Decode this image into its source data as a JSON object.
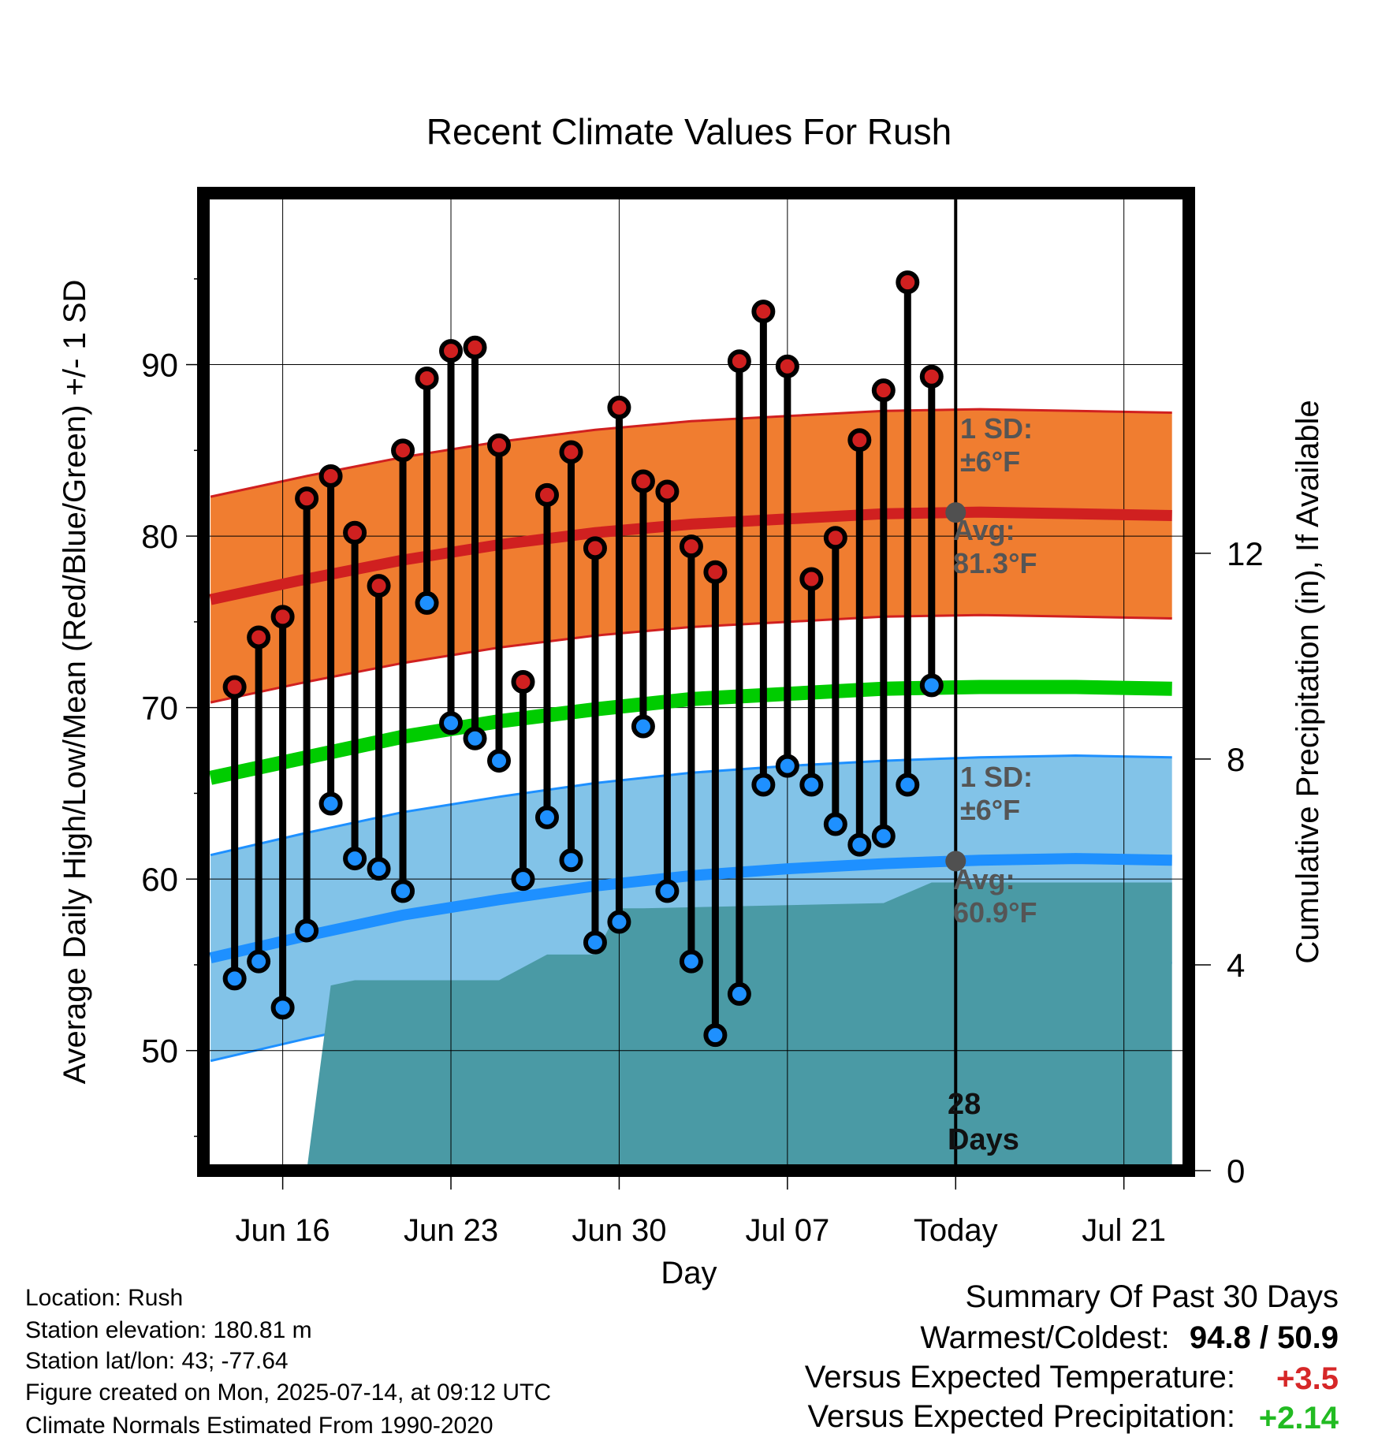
{
  "chart_data": {
    "type": "line",
    "title": "Recent Climate Values For Rush",
    "xlabel": "Day",
    "ylabel": "Average Daily High/Low/Mean (Red/Blue/Green) +/- 1 SD",
    "y2label": "Cumulative Precipitation (in), If Available",
    "ylim": [
      43,
      100
    ],
    "y_ticks": [
      50,
      60,
      70,
      80,
      90
    ],
    "y2lim": [
      0,
      19
    ],
    "y2_ticks": [
      0,
      4,
      8,
      12
    ],
    "x_ticks": [
      "Jun 16",
      "Jun 23",
      "Jun 30",
      "Jul 07",
      "Today",
      "Jul 21"
    ],
    "x_tick_days": [
      3,
      10,
      17,
      24,
      31,
      38
    ],
    "xlim": [
      -0.3,
      40.7
    ],
    "today_day": 31,
    "grid": true,
    "days": [
      1,
      2,
      3,
      4,
      5,
      6,
      7,
      8,
      9,
      10,
      11,
      12,
      13,
      14,
      15,
      16,
      17,
      18,
      19,
      20,
      21,
      22,
      23,
      24,
      25,
      26,
      27,
      28,
      29,
      30
    ],
    "highs": [
      71.2,
      74.1,
      75.3,
      82.2,
      83.5,
      80.2,
      77.1,
      85.0,
      89.2,
      90.8,
      91.0,
      85.3,
      71.5,
      82.4,
      84.9,
      79.3,
      87.5,
      83.2,
      82.6,
      79.4,
      77.9,
      90.2,
      93.1,
      89.9,
      77.5,
      79.9,
      85.6,
      88.5,
      94.8,
      89.3
    ],
    "lows": [
      54.2,
      55.2,
      52.5,
      57.0,
      64.4,
      61.2,
      60.6,
      59.3,
      76.1,
      69.1,
      68.2,
      66.9,
      60.0,
      63.6,
      61.1,
      56.3,
      57.5,
      68.9,
      59.3,
      55.2,
      50.9,
      53.3,
      65.5,
      66.6,
      65.5,
      63.2,
      62.0,
      62.5,
      65.5,
      71.3
    ],
    "normal_days": [
      0,
      4,
      8,
      12,
      16,
      20,
      24,
      28,
      32,
      36,
      40
    ],
    "normal_high": [
      76.3,
      77.5,
      78.6,
      79.5,
      80.2,
      80.7,
      81.0,
      81.3,
      81.4,
      81.3,
      81.2
    ],
    "normal_high_sd": 6,
    "normal_low": [
      55.4,
      56.7,
      57.9,
      58.8,
      59.6,
      60.2,
      60.6,
      60.9,
      61.1,
      61.2,
      61.1
    ],
    "normal_low_sd": 6,
    "normal_mean": [
      65.9,
      67.1,
      68.3,
      69.2,
      69.9,
      70.5,
      70.8,
      71.1,
      71.2,
      71.2,
      71.1
    ],
    "precip_days": [
      4,
      5,
      6,
      12,
      14,
      16,
      17,
      18,
      28,
      30,
      40
    ],
    "precip_cum": [
      0.0,
      3.6,
      3.7,
      3.7,
      4.2,
      4.2,
      5.1,
      5.1,
      5.2,
      5.6,
      5.6
    ],
    "annotations": {
      "high_sd_line1": "1 SD:",
      "high_sd_line2": "±6°F",
      "high_avg_line1": "Avg:",
      "high_avg_line2": "81.3°F",
      "low_sd_line1": "1 SD:",
      "low_sd_line2": "±6°F",
      "low_avg_line1": "Avg:",
      "low_avg_line2": "60.9°F",
      "days_line1": "28",
      "days_line2": "Days"
    },
    "colors": {
      "high_band": "#f07d30",
      "high_line": "#d02020",
      "low_band": "#82c3e8",
      "low_line": "#1e90ff",
      "mean_line": "#00cc00",
      "precip": "#4a9aa5",
      "high_marker": "#d02020",
      "low_marker": "#1e90ff",
      "annotation": "#555555"
    }
  },
  "info": {
    "location": "Location: Rush",
    "elevation": "Station elevation: 180.81 m",
    "latlon": "Station lat/lon: 43; -77.64",
    "created": "Figure created on Mon, 2025-07-14, at 09:12 UTC",
    "normals": "Climate Normals Estimated From 1990-2020"
  },
  "summary": {
    "title": "Summary Of Past 30 Days",
    "warmest_label": "Warmest/Coldest:",
    "warmest_high": "94.8",
    "warmest_sep": "/",
    "warmest_low": "50.9",
    "temp_label": "Versus Expected Temperature:",
    "temp_value": "+3.5",
    "temp_color": "#d62728",
    "precip_label": "Versus Expected Precipitation:",
    "precip_value": "+2.14",
    "precip_color": "#22bb22"
  }
}
